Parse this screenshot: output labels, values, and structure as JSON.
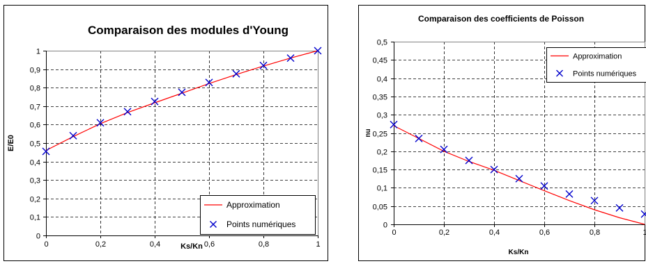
{
  "chart_data": [
    {
      "type": "line",
      "title": "Comparaison des modules d'Young",
      "xlabel": "Ks/Kn",
      "ylabel": "E/E0",
      "xlim": [
        0,
        1
      ],
      "ylim": [
        0,
        1
      ],
      "x_ticks": [
        0,
        0.2,
        0.4,
        0.6,
        0.8,
        1
      ],
      "y_ticks": [
        0,
        0.1,
        0.2,
        0.3,
        0.4,
        0.5,
        0.6,
        0.7,
        0.8,
        0.9,
        1
      ],
      "x_tick_labels": [
        "0",
        "0,2",
        "0,4",
        "0,6",
        "0,8",
        "1"
      ],
      "y_tick_labels": [
        "0",
        "0,1",
        "0,2",
        "0,3",
        "0,4",
        "0,5",
        "0,6",
        "0,7",
        "0,8",
        "0,9",
        "1"
      ],
      "grid": true,
      "legend_position": "bottom-right",
      "series": [
        {
          "name": "Approximation",
          "kind": "line",
          "color": "#ff0000",
          "x": [
            0,
            0.1,
            0.2,
            0.3,
            0.4,
            0.5,
            0.6,
            0.7,
            0.8,
            0.9,
            1
          ],
          "y": [
            0.46,
            0.535,
            0.605,
            0.665,
            0.718,
            0.77,
            0.822,
            0.871,
            0.917,
            0.96,
            1.0
          ]
        },
        {
          "name": "Points numériques",
          "kind": "scatter",
          "marker": "x",
          "color": "#0000cc",
          "x": [
            0,
            0.1,
            0.2,
            0.3,
            0.4,
            0.5,
            0.6,
            0.7,
            0.8,
            0.9,
            1
          ],
          "y": [
            0.455,
            0.54,
            0.61,
            0.67,
            0.725,
            0.775,
            0.828,
            0.875,
            0.92,
            0.96,
            1.0
          ]
        }
      ]
    },
    {
      "type": "line",
      "title": "Comparaison des coefficients de Poisson",
      "xlabel": "Ks/Kn",
      "ylabel": "nu",
      "xlim": [
        0,
        1
      ],
      "ylim": [
        0,
        0.5
      ],
      "x_ticks": [
        0,
        0.2,
        0.4,
        0.6,
        0.8,
        1
      ],
      "y_ticks": [
        0,
        0.05,
        0.1,
        0.15,
        0.2,
        0.25,
        0.3,
        0.35,
        0.4,
        0.45,
        0.5
      ],
      "x_tick_labels": [
        "0",
        "0,2",
        "0,4",
        "0,6",
        "0,8",
        "1"
      ],
      "y_tick_labels": [
        "0",
        "0,05",
        "0,1",
        "0,15",
        "0,2",
        "0,25",
        "0,3",
        "0,35",
        "0,4",
        "0,45",
        "0,5"
      ],
      "grid": true,
      "legend_position": "top-right",
      "series": [
        {
          "name": "Approximation",
          "kind": "line",
          "color": "#ff0000",
          "x": [
            0,
            0.1,
            0.2,
            0.3,
            0.4,
            0.5,
            0.6,
            0.7,
            0.8,
            0.9,
            1
          ],
          "y": [
            0.27,
            0.235,
            0.2,
            0.172,
            0.148,
            0.12,
            0.092,
            0.065,
            0.04,
            0.018,
            0.0
          ]
        },
        {
          "name": "Points numériques",
          "kind": "scatter",
          "marker": "x",
          "color": "#0000cc",
          "x": [
            0,
            0.1,
            0.2,
            0.3,
            0.4,
            0.5,
            0.6,
            0.7,
            0.8,
            0.9,
            1
          ],
          "y": [
            0.273,
            0.235,
            0.205,
            0.175,
            0.15,
            0.125,
            0.105,
            0.083,
            0.065,
            0.045,
            0.028
          ]
        }
      ]
    }
  ]
}
